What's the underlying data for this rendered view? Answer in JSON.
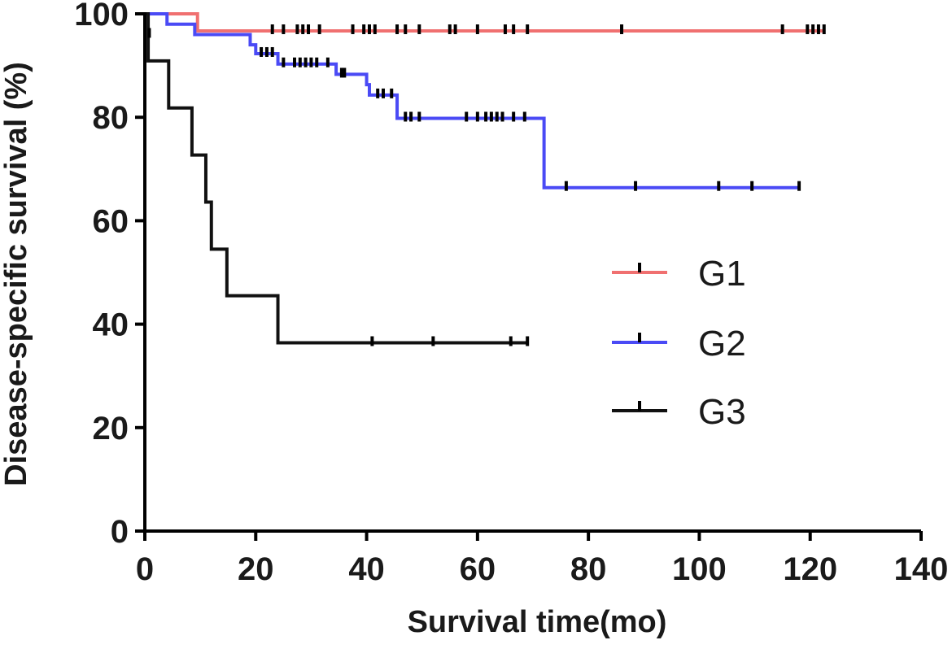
{
  "chart_data": {
    "type": "line",
    "subtype": "kaplan-meier",
    "xlabel": "Survival time(mo)",
    "ylabel": "Disease-specific survival (%)",
    "xlim": [
      0,
      140
    ],
    "ylim": [
      0,
      100
    ],
    "x_ticks": [
      "0",
      "20",
      "40",
      "60",
      "80",
      "100",
      "120",
      "140"
    ],
    "y_ticks": [
      "0",
      "20",
      "40",
      "60",
      "80",
      "100"
    ],
    "grid": false,
    "legend_position": "right-middle",
    "series": [
      {
        "name": "G1",
        "color": "#f07070",
        "steps": [
          [
            0,
            100
          ],
          [
            9.5,
            96.7
          ],
          [
            122.5,
            96.7
          ]
        ],
        "censored": [
          [
            23,
            96.7
          ],
          [
            25,
            96.7
          ],
          [
            27.5,
            96.7
          ],
          [
            28.5,
            96.7
          ],
          [
            29.5,
            96.7
          ],
          [
            31.5,
            96.7
          ],
          [
            37.5,
            96.7
          ],
          [
            39.5,
            96.7
          ],
          [
            40.5,
            96.7
          ],
          [
            41.5,
            96.7
          ],
          [
            45.5,
            96.7
          ],
          [
            47,
            96.7
          ],
          [
            49.5,
            96.7
          ],
          [
            55,
            96.7
          ],
          [
            56,
            96.7
          ],
          [
            60,
            96.7
          ],
          [
            65,
            96.7
          ],
          [
            66.5,
            96.7
          ],
          [
            69,
            96.7
          ],
          [
            86,
            96.7
          ],
          [
            115,
            96.7
          ],
          [
            119.5,
            96.7
          ],
          [
            120.5,
            96.7
          ],
          [
            121.5,
            96.7
          ],
          [
            122.5,
            96.7
          ]
        ]
      },
      {
        "name": "G2",
        "color": "#4a4af5",
        "steps": [
          [
            0,
            100
          ],
          [
            4,
            98
          ],
          [
            9,
            96
          ],
          [
            19,
            94
          ],
          [
            20,
            92.3
          ],
          [
            24,
            90.3
          ],
          [
            34.5,
            88.3
          ],
          [
            40,
            86.3
          ],
          [
            40.5,
            84.3
          ],
          [
            45.5,
            79.8
          ],
          [
            72,
            66.4
          ],
          [
            118,
            66.4
          ]
        ],
        "censored": [
          [
            21,
            92.3
          ],
          [
            22,
            92.3
          ],
          [
            23,
            92.3
          ],
          [
            25,
            90.3
          ],
          [
            27,
            90.3
          ],
          [
            28,
            90.3
          ],
          [
            29,
            90.3
          ],
          [
            30,
            90.3
          ],
          [
            31,
            90.3
          ],
          [
            33,
            90.3
          ],
          [
            35.5,
            88.3
          ],
          [
            36,
            88.3
          ],
          [
            42,
            84.3
          ],
          [
            43,
            84.3
          ],
          [
            44.5,
            84.3
          ],
          [
            47,
            79.8
          ],
          [
            48,
            79.8
          ],
          [
            49.5,
            79.8
          ],
          [
            58,
            79.8
          ],
          [
            60,
            79.8
          ],
          [
            61.5,
            79.8
          ],
          [
            62.5,
            79.8
          ],
          [
            63.5,
            79.8
          ],
          [
            64.5,
            79.8
          ],
          [
            66.5,
            79.8
          ],
          [
            68.5,
            79.8
          ],
          [
            76,
            66.4
          ],
          [
            88.5,
            66.4
          ],
          [
            103.5,
            66.4
          ],
          [
            109.5,
            66.4
          ],
          [
            118,
            66.4
          ]
        ]
      },
      {
        "name": "G3",
        "color": "#111111",
        "steps": [
          [
            0,
            100
          ],
          [
            0.6,
            90.9
          ],
          [
            4.3,
            81.8
          ],
          [
            8.5,
            72.7
          ],
          [
            11,
            63.6
          ],
          [
            12,
            54.5
          ],
          [
            14.8,
            45.5
          ],
          [
            24,
            36.4
          ],
          [
            69,
            36.4
          ]
        ],
        "censored": [
          [
            0.8,
            96
          ],
          [
            41,
            36.4
          ],
          [
            52,
            36.4
          ],
          [
            66,
            36.4
          ],
          [
            69,
            36.4
          ]
        ]
      }
    ]
  }
}
